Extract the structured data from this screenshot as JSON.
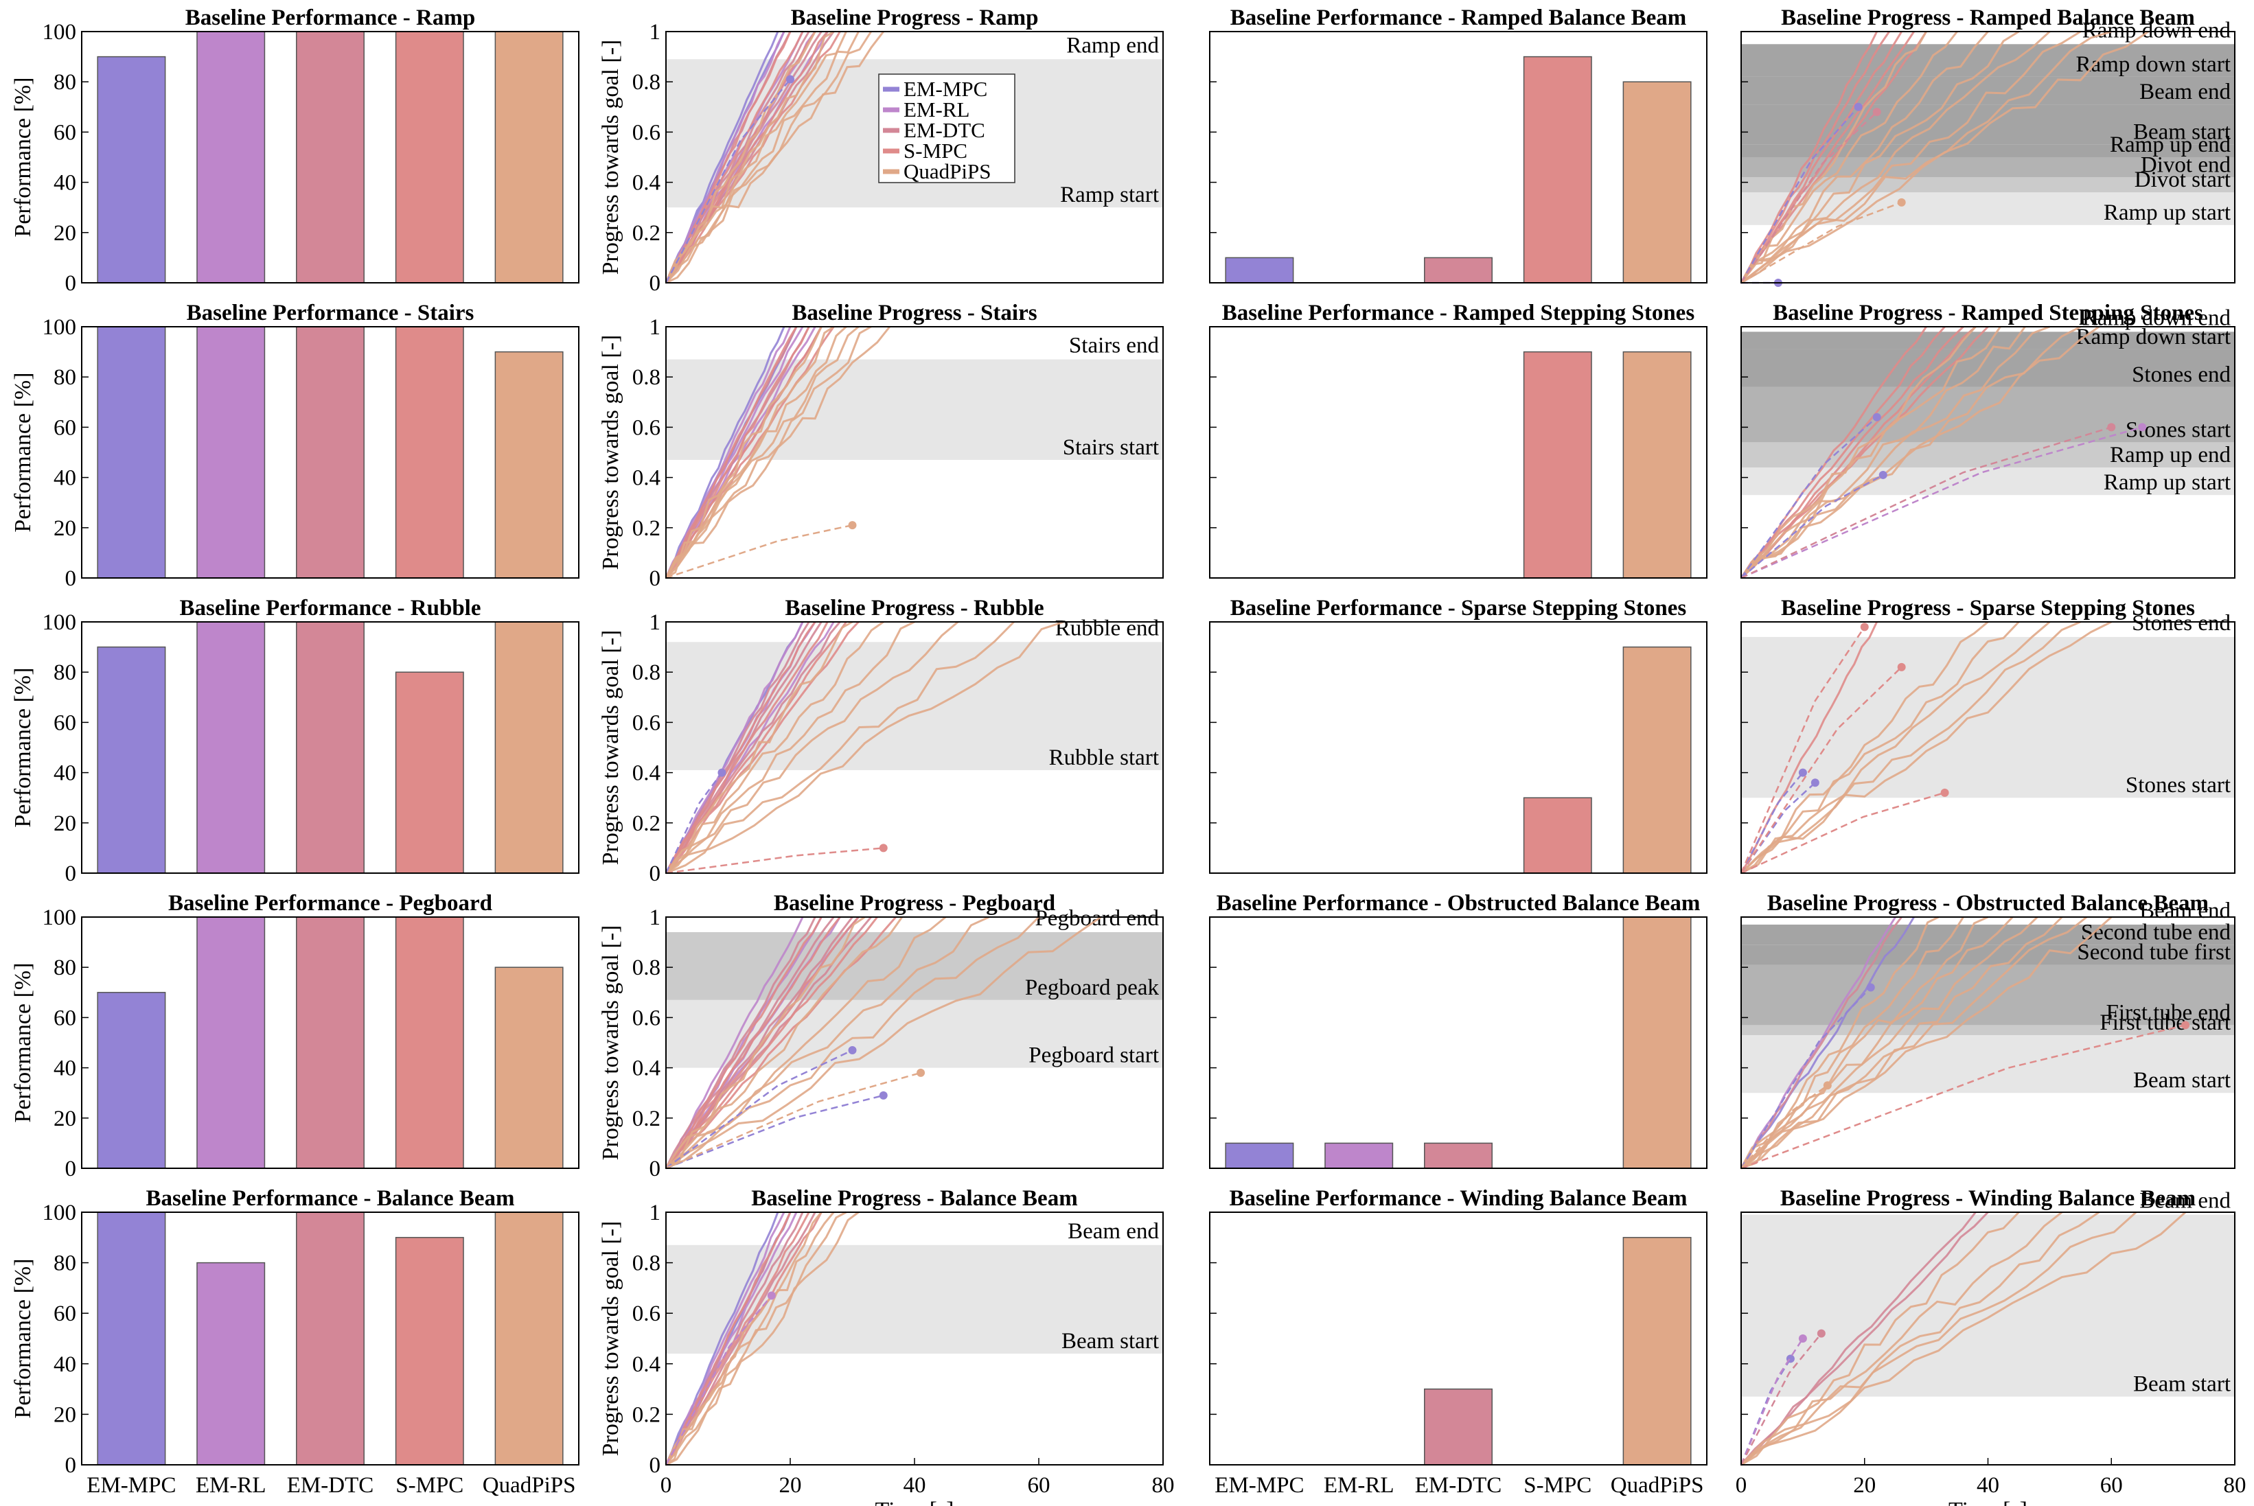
{
  "figure": {
    "methods": [
      "EM-MPC",
      "EM-RL",
      "EM-DTC",
      "S-MPC",
      "QuadPiPS"
    ],
    "colors": {
      "EM-MPC": "#9383d5",
      "EM-RL": "#be86cb",
      "EM-DTC": "#d38797",
      "S-MPC": "#df8b8a",
      "QuadPiPS": "#e0a888",
      "zone_light": "#e6e6e6",
      "zone_mid": "#cbcbcb",
      "zone_dark": "#b3b3b3",
      "zone_darker": "#a4a4a4"
    }
  },
  "chart_data": [
    {
      "id": "perf-ramp",
      "type": "bar",
      "title": "Baseline Performance - Ramp",
      "ylabel": "Performance [%]",
      "ylim": [
        0,
        100
      ],
      "yticks": [
        "0",
        "20",
        "40",
        "60",
        "80",
        "100"
      ],
      "categories": [
        "EM-MPC",
        "EM-RL",
        "EM-DTC",
        "S-MPC",
        "QuadPiPS"
      ],
      "values": [
        90,
        100,
        100,
        100,
        100
      ]
    },
    {
      "id": "prog-ramp",
      "type": "line",
      "title": "Baseline Progress - Ramp",
      "ylabel": "Progress towards goal [-]",
      "xlim": [
        0,
        80
      ],
      "ylim": [
        0,
        1
      ],
      "yticks": [
        "0",
        "0.2",
        "0.4",
        "0.6",
        "0.8",
        "1"
      ],
      "legend": {
        "position": "top-center",
        "entries": [
          "EM-MPC",
          "EM-RL",
          "EM-DTC",
          "S-MPC",
          "QuadPiPS"
        ]
      },
      "zones": [
        {
          "label": "Ramp start",
          "y": 0.3
        },
        {
          "label": "Ramp end",
          "y": 0.89
        }
      ],
      "finish_times": {
        "EM-MPC": [
          18,
          19
        ],
        "EM-RL": [
          19,
          22,
          24,
          26
        ],
        "EM-DTC": [
          20,
          23,
          25,
          27
        ],
        "S-MPC": [
          20,
          22,
          24,
          26,
          28
        ],
        "QuadPiPS": [
          24,
          27,
          29,
          31,
          33,
          35
        ]
      },
      "failures": [
        {
          "method": "EM-MPC",
          "x": 20,
          "y": 0.81
        }
      ]
    },
    {
      "id": "perf-ramped-balance-beam",
      "type": "bar",
      "title": "Baseline Performance - Ramped Balance Beam",
      "ylim": [
        0,
        100
      ],
      "categories": [
        "EM-MPC",
        "EM-RL",
        "EM-DTC",
        "S-MPC",
        "QuadPiPS"
      ],
      "values": [
        10,
        0,
        10,
        90,
        80
      ]
    },
    {
      "id": "prog-ramped-balance-beam",
      "type": "line",
      "title": "Baseline Progress - Ramped Balance Beam",
      "xlim": [
        0,
        80
      ],
      "ylim": [
        0,
        1
      ],
      "zones": [
        {
          "label": "Ramp up start",
          "y": 0.23
        },
        {
          "label": "Divot start",
          "y": 0.36
        },
        {
          "label": "Divot end",
          "y": 0.42
        },
        {
          "label": "Ramp up end",
          "y": 0.5
        },
        {
          "label": "Beam start",
          "y": 0.55
        },
        {
          "label": "Beam end",
          "y": 0.71
        },
        {
          "label": "Ramp down start",
          "y": 0.82
        },
        {
          "label": "Ramp down end",
          "y": 0.95
        }
      ],
      "finish_times": {
        "S-MPC": [
          22,
          24,
          26,
          28,
          30
        ],
        "QuadPiPS": [
          30,
          35,
          40,
          45,
          50,
          55,
          60,
          66
        ]
      },
      "failures": [
        {
          "method": "EM-MPC",
          "x": 6,
          "y": 0.0
        },
        {
          "method": "EM-MPC",
          "x": 19,
          "y": 0.7
        },
        {
          "method": "EM-DTC",
          "x": 22,
          "y": 0.68
        },
        {
          "method": "QuadPiPS",
          "x": 26,
          "y": 0.32
        }
      ]
    },
    {
      "id": "perf-stairs",
      "type": "bar",
      "title": "Baseline Performance - Stairs",
      "ylabel": "Performance [%]",
      "ylim": [
        0,
        100
      ],
      "yticks": [
        "0",
        "20",
        "40",
        "60",
        "80",
        "100"
      ],
      "categories": [
        "EM-MPC",
        "EM-RL",
        "EM-DTC",
        "S-MPC",
        "QuadPiPS"
      ],
      "values": [
        100,
        100,
        100,
        100,
        90
      ]
    },
    {
      "id": "prog-stairs",
      "type": "line",
      "title": "Baseline Progress - Stairs",
      "ylabel": "Progress towards goal [-]",
      "xlim": [
        0,
        80
      ],
      "ylim": [
        0,
        1
      ],
      "yticks": [
        "0",
        "0.2",
        "0.4",
        "0.6",
        "0.8",
        "1"
      ],
      "zones": [
        {
          "label": "Stairs start",
          "y": 0.47
        },
        {
          "label": "Stairs end",
          "y": 0.87
        }
      ],
      "finish_times": {
        "EM-MPC": [
          19,
          21
        ],
        "EM-RL": [
          20,
          22,
          24
        ],
        "EM-DTC": [
          21,
          23,
          25
        ],
        "S-MPC": [
          21,
          23,
          25,
          27
        ],
        "QuadPiPS": [
          25,
          27,
          29,
          31,
          33,
          36
        ]
      },
      "failures": [
        {
          "method": "QuadPiPS",
          "x": 30,
          "y": 0.21
        }
      ]
    },
    {
      "id": "perf-ramped-stepping-stones",
      "type": "bar",
      "title": "Baseline Performance - Ramped Stepping Stones",
      "ylim": [
        0,
        100
      ],
      "categories": [
        "EM-MPC",
        "EM-RL",
        "EM-DTC",
        "S-MPC",
        "QuadPiPS"
      ],
      "values": [
        0,
        0,
        0,
        90,
        90
      ]
    },
    {
      "id": "prog-ramped-stepping-stones",
      "type": "line",
      "title": "Baseline Progress - Ramped Stepping Stones",
      "xlim": [
        0,
        80
      ],
      "ylim": [
        0,
        1
      ],
      "zones": [
        {
          "label": "Ramp up start",
          "y": 0.33
        },
        {
          "label": "Ramp up end",
          "y": 0.44
        },
        {
          "label": "Stones start",
          "y": 0.54
        },
        {
          "label": "Stones end",
          "y": 0.76
        },
        {
          "label": "Ramp down start",
          "y": 0.91
        },
        {
          "label": "Ramp down end",
          "y": 0.98
        }
      ],
      "finish_times": {
        "S-MPC": [
          30,
          33,
          36,
          38,
          40
        ],
        "QuadPiPS": [
          38,
          42,
          46,
          50,
          55,
          58
        ]
      },
      "failures": [
        {
          "method": "EM-MPC",
          "x": 22,
          "y": 0.64
        },
        {
          "method": "EM-MPC",
          "x": 23,
          "y": 0.41
        },
        {
          "method": "EM-RL",
          "x": 65,
          "y": 0.6
        },
        {
          "method": "EM-DTC",
          "x": 60,
          "y": 0.6
        }
      ]
    },
    {
      "id": "perf-rubble",
      "type": "bar",
      "title": "Baseline Performance - Rubble",
      "ylabel": "Performance [%]",
      "ylim": [
        0,
        100
      ],
      "yticks": [
        "0",
        "20",
        "40",
        "60",
        "80",
        "100"
      ],
      "categories": [
        "EM-MPC",
        "EM-RL",
        "EM-DTC",
        "S-MPC",
        "QuadPiPS"
      ],
      "values": [
        90,
        100,
        100,
        80,
        100
      ]
    },
    {
      "id": "prog-rubble",
      "type": "line",
      "title": "Baseline Progress - Rubble",
      "ylabel": "Progress towards goal [-]",
      "xlim": [
        0,
        80
      ],
      "ylim": [
        0,
        1
      ],
      "yticks": [
        "0",
        "0.2",
        "0.4",
        "0.6",
        "0.8",
        "1"
      ],
      "zones": [
        {
          "label": "Rubble start",
          "y": 0.41
        },
        {
          "label": "Rubble end",
          "y": 0.92
        }
      ],
      "finish_times": {
        "EM-MPC": [
          22
        ],
        "EM-RL": [
          22,
          24,
          27
        ],
        "EM-DTC": [
          23,
          25,
          28
        ],
        "S-MPC": [
          24,
          26,
          29,
          31
        ],
        "QuadPiPS": [
          30,
          35,
          40,
          47,
          56,
          64
        ]
      },
      "failures": [
        {
          "method": "EM-MPC",
          "x": 9,
          "y": 0.4
        },
        {
          "method": "S-MPC",
          "x": 35,
          "y": 0.1
        }
      ]
    },
    {
      "id": "perf-sparse-stepping-stones",
      "type": "bar",
      "title": "Baseline Performance - Sparse Stepping Stones",
      "ylim": [
        0,
        100
      ],
      "categories": [
        "EM-MPC",
        "EM-RL",
        "EM-DTC",
        "S-MPC",
        "QuadPiPS"
      ],
      "values": [
        0,
        0,
        0,
        30,
        90
      ]
    },
    {
      "id": "prog-sparse-stepping-stones",
      "type": "line",
      "title": "Baseline Progress - Sparse Stepping Stones",
      "xlim": [
        0,
        80
      ],
      "ylim": [
        0,
        1
      ],
      "zones": [
        {
          "label": "Stones start",
          "y": 0.3
        },
        {
          "label": "Stones end",
          "y": 0.94
        }
      ],
      "finish_times": {
        "S-MPC": [
          22
        ],
        "QuadPiPS": [
          40,
          45,
          50,
          55,
          60
        ]
      },
      "failures": [
        {
          "method": "EM-MPC",
          "x": 10,
          "y": 0.4
        },
        {
          "method": "EM-MPC",
          "x": 12,
          "y": 0.36
        },
        {
          "method": "S-MPC",
          "x": 33,
          "y": 0.32
        },
        {
          "method": "S-MPC",
          "x": 26,
          "y": 0.82
        },
        {
          "method": "S-MPC",
          "x": 20,
          "y": 0.98
        }
      ]
    },
    {
      "id": "perf-pegboard",
      "type": "bar",
      "title": "Baseline Performance - Pegboard",
      "ylabel": "Performance [%]",
      "ylim": [
        0,
        100
      ],
      "yticks": [
        "0",
        "20",
        "40",
        "60",
        "80",
        "100"
      ],
      "categories": [
        "EM-MPC",
        "EM-RL",
        "EM-DTC",
        "S-MPC",
        "QuadPiPS"
      ],
      "values": [
        70,
        100,
        100,
        100,
        80
      ]
    },
    {
      "id": "prog-pegboard",
      "type": "line",
      "title": "Baseline Progress - Pegboard",
      "ylabel": "Progress towards goal [-]",
      "xlim": [
        0,
        80
      ],
      "ylim": [
        0,
        1
      ],
      "yticks": [
        "0",
        "0.2",
        "0.4",
        "0.6",
        "0.8",
        "1"
      ],
      "zones": [
        {
          "label": "Pegboard start",
          "y": 0.4
        },
        {
          "label": "Pegboard peak",
          "y": 0.67
        },
        {
          "label": "Pegboard end",
          "y": 0.94
        }
      ],
      "finish_times": {
        "EM-RL": [
          22,
          25,
          28,
          31
        ],
        "EM-DTC": [
          24,
          27,
          30,
          33
        ],
        "S-MPC": [
          25,
          28,
          31,
          34,
          37
        ],
        "QuadPiPS": [
          32,
          38,
          45,
          52,
          60,
          70
        ]
      },
      "failures": [
        {
          "method": "EM-MPC",
          "x": 35,
          "y": 0.29
        },
        {
          "method": "EM-MPC",
          "x": 30,
          "y": 0.47
        },
        {
          "method": "QuadPiPS",
          "x": 41,
          "y": 0.38
        }
      ]
    },
    {
      "id": "perf-obstructed-balance-beam",
      "type": "bar",
      "title": "Baseline Performance - Obstructed Balance Beam",
      "ylim": [
        0,
        100
      ],
      "categories": [
        "EM-MPC",
        "EM-RL",
        "EM-DTC",
        "S-MPC",
        "QuadPiPS"
      ],
      "values": [
        10,
        10,
        10,
        0,
        100
      ]
    },
    {
      "id": "prog-obstructed-balance-beam",
      "type": "line",
      "title": "Baseline Progress - Obstructed Balance Beam",
      "xlim": [
        0,
        80
      ],
      "ylim": [
        0,
        1
      ],
      "zones": [
        {
          "label": "Beam start",
          "y": 0.3
        },
        {
          "label": "First tube start",
          "y": 0.53
        },
        {
          "label": "First tube end",
          "y": 0.57
        },
        {
          "label": "Second tube first",
          "y": 0.81
        },
        {
          "label": "Second tube end",
          "y": 0.89
        },
        {
          "label": "Beam end",
          "y": 0.97
        }
      ],
      "finish_times": {
        "EM-MPC": [
          28
        ],
        "EM-RL": [
          25
        ],
        "EM-DTC": [
          26
        ],
        "QuadPiPS": [
          32,
          36,
          40,
          44,
          48,
          52,
          56,
          60
        ]
      },
      "failures": [
        {
          "method": "S-MPC",
          "x": 72,
          "y": 0.57
        },
        {
          "method": "EM-MPC",
          "x": 21,
          "y": 0.72
        },
        {
          "method": "QuadPiPS",
          "x": 14,
          "y": 0.33
        }
      ]
    },
    {
      "id": "perf-balance-beam",
      "type": "bar",
      "title": "Baseline Performance - Balance Beam",
      "ylabel": "Performance [%]",
      "ylim": [
        0,
        100
      ],
      "yticks": [
        "0",
        "20",
        "40",
        "60",
        "80",
        "100"
      ],
      "categories": [
        "EM-MPC",
        "EM-RL",
        "EM-DTC",
        "S-MPC",
        "QuadPiPS"
      ],
      "values": [
        100,
        80,
        100,
        90,
        100
      ],
      "xticks_shown": true
    },
    {
      "id": "prog-balance-beam",
      "type": "line",
      "title": "Baseline Progress - Balance Beam",
      "ylabel": "Progress towards goal [-]",
      "xlabel": "Time [s]",
      "xlim": [
        0,
        80
      ],
      "ylim": [
        0,
        1
      ],
      "xticks": [
        "0",
        "20",
        "40",
        "60",
        "80"
      ],
      "yticks": [
        "0",
        "0.2",
        "0.4",
        "0.6",
        "0.8",
        "1"
      ],
      "zones": [
        {
          "label": "Beam start",
          "y": 0.44
        },
        {
          "label": "Beam end",
          "y": 0.87
        }
      ],
      "finish_times": {
        "EM-MPC": [
          18,
          20
        ],
        "EM-RL": [
          19,
          21
        ],
        "EM-DTC": [
          20,
          22,
          24
        ],
        "S-MPC": [
          20,
          23,
          25
        ],
        "QuadPiPS": [
          25,
          27,
          29,
          31
        ]
      },
      "failures": [
        {
          "method": "EM-RL",
          "x": 17,
          "y": 0.67
        }
      ]
    },
    {
      "id": "perf-winding-balance-beam",
      "type": "bar",
      "title": "Baseline Performance - Winding Balance Beam",
      "ylim": [
        0,
        100
      ],
      "categories": [
        "EM-MPC",
        "EM-RL",
        "EM-DTC",
        "S-MPC",
        "QuadPiPS"
      ],
      "values": [
        0,
        0,
        30,
        0,
        90
      ],
      "xticks_shown": true
    },
    {
      "id": "prog-winding-balance-beam",
      "type": "line",
      "title": "Baseline Progress - Winding Balance Beam",
      "xlabel": "Time [s]",
      "xlim": [
        0,
        80
      ],
      "ylim": [
        0,
        1
      ],
      "xticks": [
        "0",
        "20",
        "40",
        "60",
        "80"
      ],
      "zones": [
        {
          "label": "Beam start",
          "y": 0.27
        },
        {
          "label": "Beam end",
          "y": 0.99
        }
      ],
      "finish_times": {
        "EM-DTC": [
          38,
          40
        ],
        "QuadPiPS": [
          45,
          52,
          58,
          64,
          72
        ]
      },
      "failures": [
        {
          "method": "EM-MPC",
          "x": 8,
          "y": 0.42
        },
        {
          "method": "EM-RL",
          "x": 10,
          "y": 0.5
        },
        {
          "method": "EM-DTC",
          "x": 13,
          "y": 0.52
        }
      ]
    }
  ]
}
